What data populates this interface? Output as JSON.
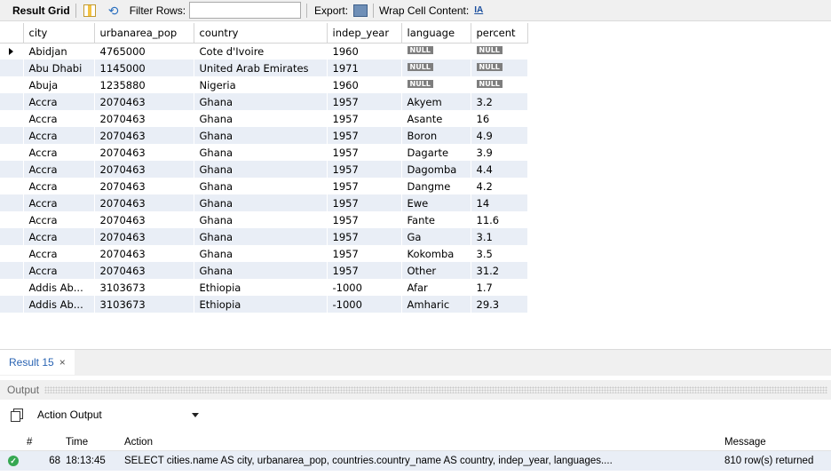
{
  "toolbar": {
    "result_grid_label": "Result Grid",
    "filter_label": "Filter Rows:",
    "filter_value": "",
    "export_label": "Export:",
    "wrap_label": "Wrap Cell Content:",
    "wrap_icon_glyph": "IA"
  },
  "grid": {
    "columns": [
      "city",
      "urbanarea_pop",
      "country",
      "indep_year",
      "language",
      "percent"
    ],
    "null_label": "NULL",
    "rows": [
      {
        "city": "Abidjan",
        "pop": "4765000",
        "country": "Cote d'Ivoire",
        "year": "1960",
        "language": null,
        "percent": null
      },
      {
        "city": "Abu Dhabi",
        "pop": "1145000",
        "country": "United Arab Emirates",
        "year": "1971",
        "language": null,
        "percent": null
      },
      {
        "city": "Abuja",
        "pop": "1235880",
        "country": "Nigeria",
        "year": "1960",
        "language": null,
        "percent": null
      },
      {
        "city": "Accra",
        "pop": "2070463",
        "country": "Ghana",
        "year": "1957",
        "language": "Akyem",
        "percent": "3.2"
      },
      {
        "city": "Accra",
        "pop": "2070463",
        "country": "Ghana",
        "year": "1957",
        "language": "Asante",
        "percent": "16"
      },
      {
        "city": "Accra",
        "pop": "2070463",
        "country": "Ghana",
        "year": "1957",
        "language": "Boron",
        "percent": "4.9"
      },
      {
        "city": "Accra",
        "pop": "2070463",
        "country": "Ghana",
        "year": "1957",
        "language": "Dagarte",
        "percent": "3.9"
      },
      {
        "city": "Accra",
        "pop": "2070463",
        "country": "Ghana",
        "year": "1957",
        "language": "Dagomba",
        "percent": "4.4"
      },
      {
        "city": "Accra",
        "pop": "2070463",
        "country": "Ghana",
        "year": "1957",
        "language": "Dangme",
        "percent": "4.2"
      },
      {
        "city": "Accra",
        "pop": "2070463",
        "country": "Ghana",
        "year": "1957",
        "language": "Ewe",
        "percent": "14"
      },
      {
        "city": "Accra",
        "pop": "2070463",
        "country": "Ghana",
        "year": "1957",
        "language": "Fante",
        "percent": "11.6"
      },
      {
        "city": "Accra",
        "pop": "2070463",
        "country": "Ghana",
        "year": "1957",
        "language": "Ga",
        "percent": "3.1"
      },
      {
        "city": "Accra",
        "pop": "2070463",
        "country": "Ghana",
        "year": "1957",
        "language": "Kokomba",
        "percent": "3.5"
      },
      {
        "city": "Accra",
        "pop": "2070463",
        "country": "Ghana",
        "year": "1957",
        "language": "Other",
        "percent": "31.2"
      },
      {
        "city": "Addis Ab...",
        "pop": "3103673",
        "country": "Ethiopia",
        "year": "-1000",
        "language": "Afar",
        "percent": "1.7"
      },
      {
        "city": "Addis Ab...",
        "pop": "3103673",
        "country": "Ethiopia",
        "year": "-1000",
        "language": "Amharic",
        "percent": "29.3"
      }
    ]
  },
  "result_tab": {
    "label": "Result 15",
    "close_glyph": "×"
  },
  "output": {
    "header": "Output",
    "action_select": "Action Output",
    "columns": {
      "num": "#",
      "time": "Time",
      "action": "Action",
      "message": "Message"
    },
    "rows": [
      {
        "num": "68",
        "time": "18:13:45",
        "action": "SELECT cities.name AS city, urbanarea_pop, countries.country_name AS country,     indep_year, languages....",
        "message": "810 row(s) returned"
      }
    ]
  }
}
